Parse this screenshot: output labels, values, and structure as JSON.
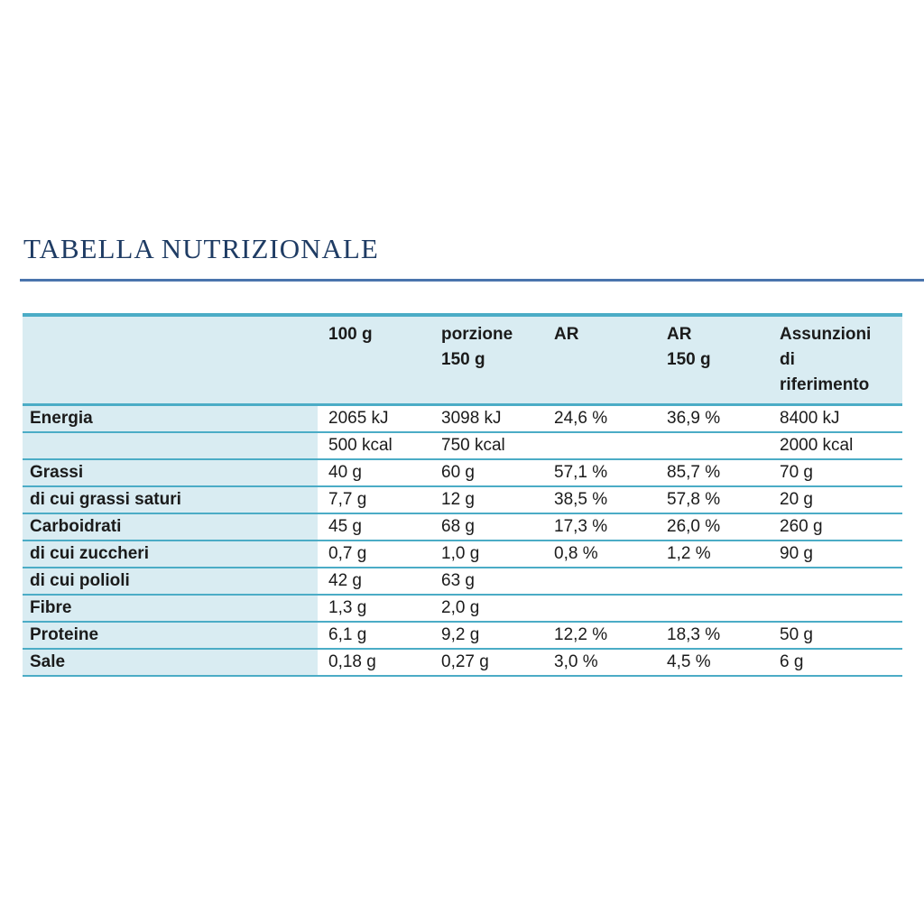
{
  "page": {
    "title": "TABELLA NUTRIZIONALE"
  },
  "colors": {
    "title_navy": "#1f3c64",
    "title_rule_blue": "#4a74ad",
    "table_border_teal": "#4bacc6",
    "panel_light_blue": "#d9ecf2",
    "value_cell_bg": "#ffffff",
    "text_dark": "#1b1b1b"
  },
  "table": {
    "columns": [
      "",
      "100 g",
      "porzione\n150 g",
      "AR",
      "AR\n150 g",
      "Assunzioni\ndi\nriferimento"
    ],
    "rows": [
      {
        "label": "Energia",
        "values": [
          "2065 kJ",
          "3098 kJ",
          "24,6 %",
          "36,9 %",
          "8400 kJ"
        ]
      },
      {
        "label": "",
        "values": [
          "500 kcal",
          "750 kcal",
          "",
          "",
          "2000 kcal"
        ]
      },
      {
        "label": "Grassi",
        "values": [
          "40 g",
          "60 g",
          "57,1 %",
          "85,7 %",
          "70 g"
        ]
      },
      {
        "label": "di cui grassi saturi",
        "values": [
          "7,7 g",
          "12 g",
          "38,5 %",
          "57,8 %",
          "20 g"
        ]
      },
      {
        "label": "Carboidrati",
        "values": [
          "45 g",
          "68 g",
          "17,3 %",
          "26,0 %",
          "260 g"
        ]
      },
      {
        "label": "di cui zuccheri",
        "values": [
          "0,7 g",
          "1,0 g",
          "0,8 %",
          "1,2 %",
          "90 g"
        ]
      },
      {
        "label": "di cui polioli",
        "values": [
          "42 g",
          "63 g",
          "",
          "",
          ""
        ]
      },
      {
        "label": "Fibre",
        "values": [
          "1,3 g",
          "2,0 g",
          "",
          "",
          ""
        ]
      },
      {
        "label": "Proteine",
        "values": [
          "6,1 g",
          "9,2 g",
          "12,2 %",
          "18,3 %",
          "50 g"
        ]
      },
      {
        "label": "Sale",
        "values": [
          "0,18 g",
          "0,27 g",
          "3,0 %",
          "4,5 %",
          "6 g"
        ]
      }
    ]
  }
}
